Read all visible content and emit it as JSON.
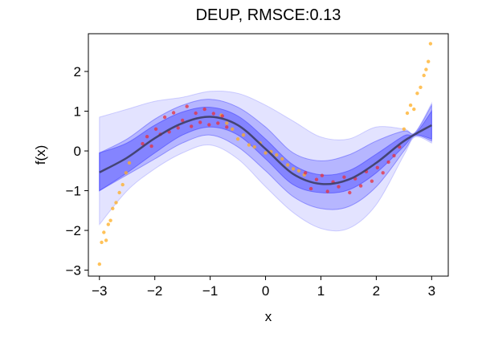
{
  "chart_data": {
    "type": "scatter",
    "title": "DEUP, RMSCE:0.13",
    "xlabel": "x",
    "ylabel": "f(x)",
    "xlim": [
      -3.2,
      3.3
    ],
    "ylim": [
      -3.15,
      2.95
    ],
    "x_ticks": [
      -3,
      -2,
      -1,
      0,
      1,
      2,
      3
    ],
    "x_tick_labels": [
      "−3",
      "−2",
      "−1",
      "0",
      "1",
      "2",
      "3"
    ],
    "y_ticks": [
      -3,
      -2,
      -1,
      0,
      1,
      2
    ],
    "y_tick_labels": [
      "−3",
      "−2",
      "−1",
      "0",
      "1",
      "2"
    ],
    "grid": false,
    "series": [
      {
        "role": "mean-line",
        "color": "#3d3d66",
        "x": [
          -3.0,
          -2.5,
          -2.0,
          -1.5,
          -1.0,
          -0.5,
          0.0,
          0.5,
          1.0,
          1.5,
          2.0,
          2.5,
          3.0
        ],
        "y": [
          -0.54,
          -0.17,
          0.32,
          0.7,
          0.86,
          0.65,
          0.05,
          -0.58,
          -0.83,
          -0.72,
          -0.3,
          0.25,
          0.65
        ]
      },
      {
        "role": "uncertainty-band-inner",
        "color": "#4040ff",
        "x": [
          -3.0,
          -2.5,
          -2.0,
          -1.5,
          -1.0,
          -0.5,
          0.0,
          0.5,
          1.0,
          1.5,
          2.0,
          2.5,
          2.7,
          3.0
        ],
        "lower": [
          -1.0,
          -0.55,
          -0.05,
          0.4,
          0.6,
          0.4,
          -0.2,
          -0.85,
          -1.05,
          -0.98,
          -0.55,
          0.12,
          0.4,
          0.3
        ],
        "upper": [
          -0.05,
          0.2,
          0.65,
          0.98,
          1.1,
          0.88,
          0.3,
          -0.35,
          -0.6,
          -0.5,
          -0.08,
          0.38,
          0.42,
          1.0
        ]
      },
      {
        "role": "uncertainty-band-middle",
        "color": "#4040ff",
        "x": [
          -3.0,
          -2.5,
          -2.0,
          -1.5,
          -1.0,
          -0.5,
          0.0,
          0.5,
          1.0,
          1.5,
          2.0,
          2.5,
          2.7,
          3.0
        ],
        "lower": [
          -1.0,
          -0.6,
          -0.2,
          0.2,
          0.4,
          0.1,
          -0.5,
          -1.15,
          -1.45,
          -1.4,
          -0.9,
          0.0,
          0.38,
          0.25
        ],
        "upper": [
          -0.05,
          0.3,
          0.8,
          1.15,
          1.3,
          1.1,
          0.6,
          -0.05,
          -0.25,
          -0.1,
          0.25,
          0.5,
          0.45,
          1.15
        ]
      },
      {
        "role": "uncertainty-band-outer",
        "color": "#8080ff",
        "x": [
          -3.0,
          -2.5,
          -2.0,
          -1.5,
          -1.0,
          -0.5,
          0.0,
          0.5,
          1.0,
          1.5,
          2.0,
          2.5,
          2.7,
          3.0
        ],
        "lower": [
          -1.85,
          -1.0,
          -0.45,
          -0.05,
          0.15,
          -0.2,
          -0.9,
          -1.55,
          -1.95,
          -1.95,
          -1.35,
          -0.1,
          0.35,
          0.2
        ],
        "upper": [
          0.85,
          1.05,
          1.25,
          1.35,
          1.5,
          1.45,
          1.15,
          0.75,
          0.35,
          0.3,
          0.6,
          0.55,
          0.47,
          1.2
        ]
      },
      {
        "role": "points-in-distribution",
        "color": "#e8303a",
        "x": [
          -2.22,
          -2.14,
          -2.06,
          -1.98,
          -1.9,
          -1.82,
          -1.74,
          -1.66,
          -1.58,
          -1.5,
          -1.42,
          -1.34,
          -1.26,
          -1.18,
          -1.1,
          -1.02,
          -0.94,
          -0.86,
          -0.78,
          -0.7,
          0.72,
          0.82,
          0.92,
          1.02,
          1.12,
          1.22,
          1.32,
          1.42,
          1.52,
          1.62,
          1.72,
          1.82,
          1.92,
          2.02,
          2.12,
          2.22,
          2.32,
          2.42
        ],
        "y": [
          0.18,
          0.36,
          0.12,
          0.55,
          0.42,
          0.85,
          0.48,
          0.96,
          0.58,
          0.77,
          1.12,
          0.62,
          0.95,
          0.72,
          1.05,
          0.66,
          0.94,
          0.7,
          0.88,
          0.6,
          -0.55,
          -0.95,
          -0.72,
          -0.62,
          -1.02,
          -0.78,
          -0.9,
          -0.66,
          -1.05,
          -0.7,
          -0.88,
          -0.52,
          -0.76,
          -0.42,
          -0.55,
          -0.28,
          -0.12,
          0.1
        ]
      },
      {
        "role": "points-out-of-distribution",
        "color": "#ffae21",
        "x": [
          -3.0,
          -2.96,
          -2.92,
          -2.88,
          -2.84,
          -2.8,
          -2.76,
          -2.7,
          -2.64,
          -2.58,
          -2.52,
          -2.46,
          -0.8,
          -0.7,
          -0.6,
          -0.5,
          -0.4,
          -0.3,
          -0.2,
          -0.1,
          0.0,
          0.1,
          0.2,
          0.3,
          0.4,
          0.5,
          0.6,
          0.7,
          2.5,
          2.56,
          2.62,
          2.68,
          2.74,
          2.8,
          2.86,
          2.9,
          2.94,
          2.98
        ],
        "y": [
          -2.85,
          -2.3,
          -2.05,
          -2.25,
          -1.85,
          -1.75,
          -1.45,
          -1.3,
          -1.05,
          -0.85,
          -0.55,
          -0.3,
          0.9,
          0.7,
          0.55,
          0.3,
          0.4,
          0.15,
          0.1,
          0.2,
          -0.05,
          -0.02,
          -0.1,
          -0.2,
          -0.35,
          -0.45,
          -0.5,
          -0.6,
          0.55,
          0.95,
          1.15,
          1.05,
          1.45,
          1.6,
          1.9,
          2.05,
          2.25,
          2.7
        ]
      }
    ]
  }
}
